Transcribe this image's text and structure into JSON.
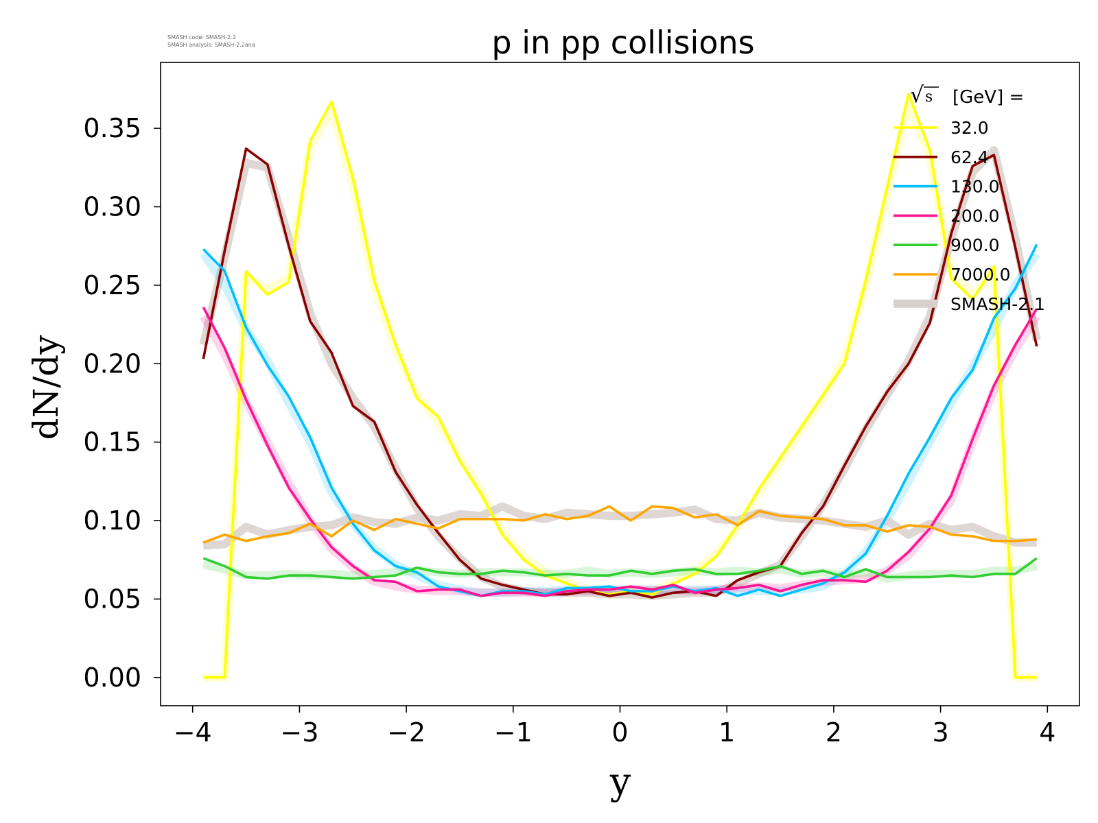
{
  "meta_note": {
    "line1": "SMASH code:      SMASH-2.2",
    "line2": "SMASH analysis: SMASH-2.2ana"
  },
  "chart_data": {
    "type": "line",
    "title": "p in pp collisions",
    "xlabel": "y",
    "ylabel": "dN/dy",
    "xlim": [
      -4.3,
      4.3
    ],
    "ylim": [
      -0.018,
      0.392
    ],
    "xticks": [
      -4,
      -3,
      -2,
      -1,
      0,
      1,
      2,
      3,
      4
    ],
    "xtick_labels": [
      "−4",
      "−3",
      "−2",
      "−1",
      "0",
      "1",
      "2",
      "3",
      "4"
    ],
    "yticks": [
      0.0,
      0.05,
      0.1,
      0.15,
      0.2,
      0.25,
      0.3,
      0.35
    ],
    "ytick_labels": [
      "0.00",
      "0.05",
      "0.10",
      "0.15",
      "0.20",
      "0.25",
      "0.30",
      "0.35"
    ],
    "grid": false,
    "legend": {
      "placement": "top-right",
      "title_root": "s",
      "title_text": "[GeV] =",
      "reference_label": "SMASH-2.1",
      "reference_color": "#d9d0cc"
    },
    "x": [
      -3.9,
      -3.7,
      -3.5,
      -3.3,
      -3.1,
      -2.9,
      -2.7,
      -2.5,
      -2.3,
      -2.1,
      -1.9,
      -1.7,
      -1.5,
      -1.3,
      -1.1,
      -0.9,
      -0.7,
      -0.5,
      -0.3,
      -0.1,
      0.1,
      0.3,
      0.5,
      0.7,
      0.9,
      1.1,
      1.3,
      1.5,
      1.7,
      1.9,
      2.1,
      2.3,
      2.5,
      2.7,
      2.9,
      3.1,
      3.3,
      3.5,
      3.7,
      3.9
    ],
    "series": [
      {
        "name": "32.0",
        "color": "#ffff00",
        "values": [
          0.0,
          0.0,
          0.259,
          0.244,
          0.252,
          0.342,
          0.367,
          0.318,
          0.253,
          0.212,
          0.178,
          0.166,
          0.138,
          0.117,
          0.091,
          0.075,
          0.065,
          0.06,
          0.055,
          0.053,
          0.055,
          0.053,
          0.06,
          0.066,
          0.077,
          0.097,
          0.12,
          0.14,
          0.16,
          0.18,
          0.2,
          0.253,
          0.312,
          0.372,
          0.336,
          0.254,
          0.241,
          0.262,
          0.0,
          0.0
        ],
        "reference": [
          0.0,
          0.0,
          0.256,
          0.247,
          0.255,
          0.338,
          0.362,
          0.314,
          0.25,
          0.209,
          0.18,
          0.163,
          0.14,
          0.119,
          0.093,
          0.077,
          0.067,
          0.061,
          0.056,
          0.054,
          0.056,
          0.055,
          0.061,
          0.068,
          0.079,
          0.095,
          0.118,
          0.138,
          0.158,
          0.178,
          0.203,
          0.25,
          0.308,
          0.366,
          0.332,
          0.257,
          0.244,
          0.258,
          0.0,
          0.0
        ]
      },
      {
        "name": "62.4",
        "color": "#8b0000",
        "values": [
          0.203,
          0.272,
          0.337,
          0.327,
          0.275,
          0.227,
          0.207,
          0.173,
          0.163,
          0.131,
          0.11,
          0.092,
          0.075,
          0.063,
          0.059,
          0.056,
          0.053,
          0.053,
          0.055,
          0.052,
          0.054,
          0.051,
          0.054,
          0.055,
          0.052,
          0.062,
          0.067,
          0.071,
          0.092,
          0.109,
          0.135,
          0.16,
          0.182,
          0.2,
          0.226,
          0.283,
          0.326,
          0.333,
          0.274,
          0.211
        ],
        "reference": [
          0.212,
          0.268,
          0.328,
          0.325,
          0.28,
          0.232,
          0.2,
          0.178,
          0.16,
          0.133,
          0.108,
          0.09,
          0.076,
          0.064,
          0.058,
          0.055,
          0.054,
          0.054,
          0.054,
          0.053,
          0.053,
          0.052,
          0.053,
          0.054,
          0.054,
          0.06,
          0.066,
          0.072,
          0.09,
          0.11,
          0.133,
          0.158,
          0.18,
          0.202,
          0.23,
          0.28,
          0.322,
          0.336,
          0.28,
          0.215
        ]
      },
      {
        "name": "130.0",
        "color": "#00bfff",
        "values": [
          0.273,
          0.259,
          0.223,
          0.199,
          0.179,
          0.153,
          0.121,
          0.098,
          0.081,
          0.071,
          0.067,
          0.058,
          0.055,
          0.052,
          0.055,
          0.055,
          0.053,
          0.057,
          0.057,
          0.058,
          0.055,
          0.055,
          0.058,
          0.055,
          0.057,
          0.052,
          0.056,
          0.052,
          0.056,
          0.06,
          0.067,
          0.079,
          0.103,
          0.13,
          0.153,
          0.178,
          0.196,
          0.229,
          0.248,
          0.276
        ],
        "reference": [
          0.27,
          0.25,
          0.222,
          0.202,
          0.175,
          0.15,
          0.118,
          0.098,
          0.082,
          0.072,
          0.065,
          0.059,
          0.056,
          0.054,
          0.054,
          0.055,
          0.055,
          0.056,
          0.056,
          0.056,
          0.056,
          0.056,
          0.056,
          0.056,
          0.056,
          0.055,
          0.055,
          0.055,
          0.056,
          0.058,
          0.066,
          0.08,
          0.1,
          0.125,
          0.15,
          0.175,
          0.198,
          0.222,
          0.25,
          0.27
        ]
      },
      {
        "name": "200.0",
        "color": "#ff1493",
        "values": [
          0.236,
          0.21,
          0.177,
          0.148,
          0.121,
          0.101,
          0.083,
          0.071,
          0.062,
          0.061,
          0.055,
          0.056,
          0.056,
          0.052,
          0.054,
          0.054,
          0.052,
          0.055,
          0.056,
          0.056,
          0.058,
          0.056,
          0.059,
          0.054,
          0.056,
          0.057,
          0.059,
          0.055,
          0.059,
          0.062,
          0.062,
          0.061,
          0.068,
          0.08,
          0.095,
          0.116,
          0.152,
          0.186,
          0.212,
          0.235
        ],
        "reference": [
          0.23,
          0.206,
          0.176,
          0.15,
          0.124,
          0.1,
          0.082,
          0.07,
          0.061,
          0.058,
          0.056,
          0.055,
          0.055,
          0.054,
          0.054,
          0.054,
          0.054,
          0.055,
          0.055,
          0.055,
          0.056,
          0.056,
          0.056,
          0.055,
          0.056,
          0.057,
          0.058,
          0.057,
          0.059,
          0.061,
          0.062,
          0.063,
          0.068,
          0.078,
          0.094,
          0.113,
          0.15,
          0.183,
          0.209,
          0.23
        ]
      },
      {
        "name": "900.0",
        "color": "#32cd32",
        "values": [
          0.076,
          0.071,
          0.064,
          0.063,
          0.065,
          0.065,
          0.064,
          0.063,
          0.064,
          0.065,
          0.07,
          0.067,
          0.066,
          0.066,
          0.068,
          0.067,
          0.065,
          0.066,
          0.065,
          0.065,
          0.068,
          0.066,
          0.068,
          0.069,
          0.066,
          0.066,
          0.068,
          0.071,
          0.066,
          0.068,
          0.064,
          0.069,
          0.064,
          0.064,
          0.064,
          0.065,
          0.064,
          0.066,
          0.066,
          0.076
        ],
        "reference": [
          0.072,
          0.069,
          0.065,
          0.065,
          0.066,
          0.065,
          0.066,
          0.065,
          0.066,
          0.067,
          0.068,
          0.067,
          0.066,
          0.067,
          0.067,
          0.067,
          0.066,
          0.066,
          0.068,
          0.066,
          0.067,
          0.066,
          0.067,
          0.068,
          0.067,
          0.068,
          0.067,
          0.069,
          0.066,
          0.067,
          0.065,
          0.067,
          0.063,
          0.065,
          0.066,
          0.066,
          0.066,
          0.068,
          0.068,
          0.071
        ]
      },
      {
        "name": "7000.0",
        "color": "#ffa500",
        "values": [
          0.086,
          0.091,
          0.087,
          0.09,
          0.092,
          0.098,
          0.09,
          0.1,
          0.094,
          0.101,
          0.098,
          0.095,
          0.101,
          0.101,
          0.101,
          0.1,
          0.104,
          0.101,
          0.103,
          0.109,
          0.1,
          0.109,
          0.108,
          0.102,
          0.104,
          0.097,
          0.106,
          0.103,
          0.102,
          0.101,
          0.097,
          0.097,
          0.093,
          0.097,
          0.096,
          0.091,
          0.09,
          0.087,
          0.087,
          0.088
        ],
        "reference": [
          0.084,
          0.085,
          0.096,
          0.091,
          0.094,
          0.096,
          0.097,
          0.102,
          0.099,
          0.098,
          0.102,
          0.1,
          0.104,
          0.103,
          0.109,
          0.103,
          0.101,
          0.105,
          0.104,
          0.103,
          0.103,
          0.104,
          0.105,
          0.107,
          0.101,
          0.1,
          0.105,
          0.102,
          0.101,
          0.1,
          0.098,
          0.096,
          0.1,
          0.091,
          0.098,
          0.094,
          0.096,
          0.09,
          0.086,
          0.086
        ]
      }
    ]
  }
}
